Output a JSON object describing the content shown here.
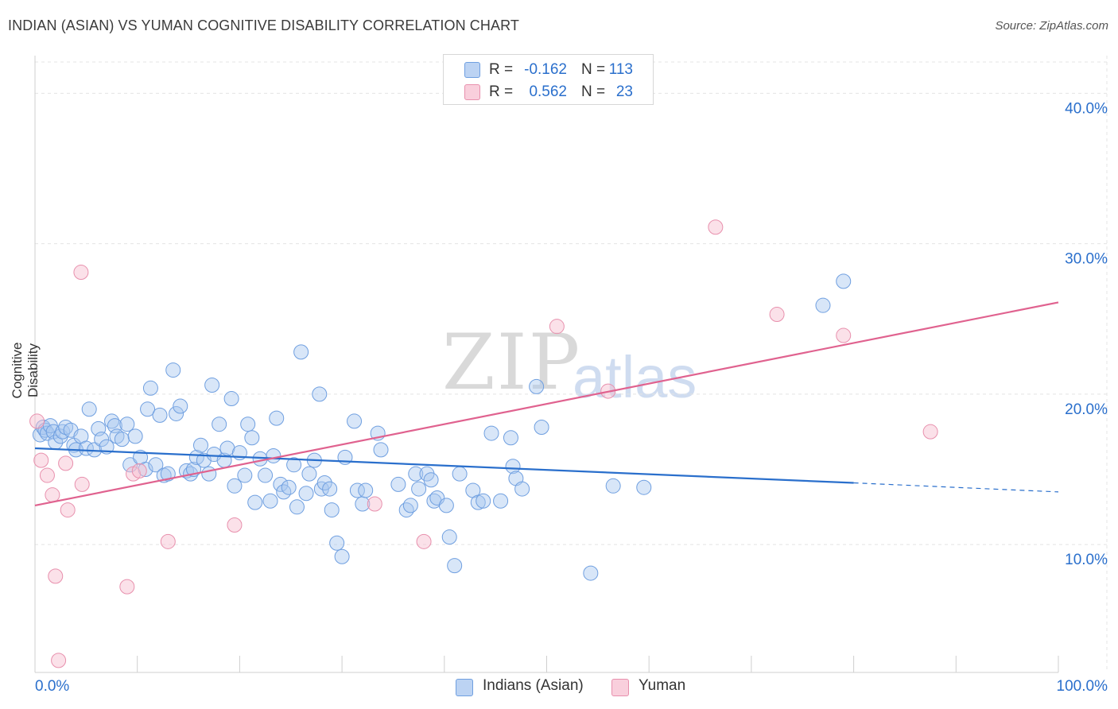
{
  "title": "INDIAN (ASIAN) VS YUMAN COGNITIVE DISABILITY CORRELATION CHART",
  "source": "Source: ZipAtlas.com",
  "watermark": {
    "zip": "ZIP",
    "atlas": "atlas"
  },
  "colors": {
    "blue": "#2a6fcc",
    "blue_fill": "#a9c7ef",
    "pink": "#e0628f",
    "pink_fill": "#f6bccf",
    "tick_label": "#2a6fcc",
    "grid": "#e4e4e4"
  },
  "legend": {
    "rows": [
      {
        "r_label": "R =",
        "r_value": "-0.162",
        "n_label": "N =",
        "n_value": "113"
      },
      {
        "r_label": "R =",
        "r_value": "0.562",
        "n_label": "N =",
        "n_value": "23"
      }
    ]
  },
  "chart_data": {
    "type": "scatter",
    "title": "INDIAN (ASIAN) VS YUMAN COGNITIVE DISABILITY CORRELATION CHART",
    "ylabel": "Cognitive Disability",
    "xlabel": "",
    "xlim": [
      0,
      100
    ],
    "ylim": [
      1.5,
      42.5
    ],
    "x_tick_labels": [
      "0.0%",
      "100.0%"
    ],
    "y_ticks": [
      10,
      20,
      30,
      40
    ],
    "y_tick_labels": [
      "10.0%",
      "20.0%",
      "30.0%",
      "40.0%"
    ],
    "grid": true,
    "legend_position": "top-center and bottom",
    "series": [
      {
        "name": "Indians (Asian)",
        "color": "#2a6fcc",
        "r": -0.162,
        "n": 113,
        "trend": {
          "x": [
            0,
            80,
            100
          ],
          "y": [
            16.4,
            14.1,
            13.5
          ],
          "dashed_from": 80
        },
        "points": [
          [
            0.5,
            17.3
          ],
          [
            0.8,
            17.8
          ],
          [
            1.0,
            17.6
          ],
          [
            1.2,
            17.4
          ],
          [
            1.5,
            17.9
          ],
          [
            1.8,
            17.5
          ],
          [
            2.0,
            16.8
          ],
          [
            2.5,
            17.2
          ],
          [
            2.7,
            17.5
          ],
          [
            3.0,
            17.8
          ],
          [
            3.5,
            17.6
          ],
          [
            3.8,
            16.6
          ],
          [
            4.0,
            16.3
          ],
          [
            4.5,
            17.2
          ],
          [
            5.0,
            16.4
          ],
          [
            5.3,
            19.0
          ],
          [
            5.8,
            16.3
          ],
          [
            6.2,
            17.7
          ],
          [
            6.5,
            17.0
          ],
          [
            7.0,
            16.5
          ],
          [
            7.5,
            18.2
          ],
          [
            7.8,
            17.9
          ],
          [
            8.0,
            17.2
          ],
          [
            8.5,
            17.0
          ],
          [
            9.0,
            18.0
          ],
          [
            9.3,
            15.3
          ],
          [
            9.8,
            17.2
          ],
          [
            10.3,
            15.8
          ],
          [
            10.8,
            15.0
          ],
          [
            11.0,
            19.0
          ],
          [
            11.3,
            20.4
          ],
          [
            11.8,
            15.3
          ],
          [
            12.2,
            18.6
          ],
          [
            12.6,
            14.6
          ],
          [
            13.0,
            14.7
          ],
          [
            13.5,
            21.6
          ],
          [
            13.8,
            18.7
          ],
          [
            14.2,
            19.2
          ],
          [
            14.8,
            14.9
          ],
          [
            15.2,
            14.7
          ],
          [
            15.5,
            15.0
          ],
          [
            15.8,
            15.8
          ],
          [
            16.2,
            16.6
          ],
          [
            16.5,
            15.6
          ],
          [
            17.0,
            14.7
          ],
          [
            17.3,
            20.6
          ],
          [
            17.5,
            16.0
          ],
          [
            18.0,
            18.0
          ],
          [
            18.5,
            15.6
          ],
          [
            18.8,
            16.4
          ],
          [
            19.2,
            19.7
          ],
          [
            19.5,
            13.9
          ],
          [
            20.0,
            16.1
          ],
          [
            20.5,
            14.6
          ],
          [
            20.8,
            18.0
          ],
          [
            21.2,
            17.1
          ],
          [
            21.5,
            12.8
          ],
          [
            22.0,
            15.7
          ],
          [
            22.5,
            14.6
          ],
          [
            23.0,
            12.9
          ],
          [
            23.3,
            15.9
          ],
          [
            23.6,
            18.4
          ],
          [
            24.0,
            14.0
          ],
          [
            24.3,
            13.5
          ],
          [
            24.8,
            13.8
          ],
          [
            25.3,
            15.3
          ],
          [
            25.6,
            12.5
          ],
          [
            26.0,
            22.8
          ],
          [
            26.5,
            13.4
          ],
          [
            26.8,
            14.7
          ],
          [
            27.3,
            15.6
          ],
          [
            27.8,
            20.0
          ],
          [
            28.0,
            13.7
          ],
          [
            28.3,
            14.1
          ],
          [
            28.8,
            13.7
          ],
          [
            29.0,
            12.3
          ],
          [
            29.5,
            10.1
          ],
          [
            30.0,
            9.2
          ],
          [
            30.3,
            15.8
          ],
          [
            31.2,
            18.2
          ],
          [
            31.5,
            13.6
          ],
          [
            32.0,
            12.7
          ],
          [
            32.3,
            13.6
          ],
          [
            33.5,
            17.4
          ],
          [
            33.8,
            16.3
          ],
          [
            35.5,
            14.0
          ],
          [
            36.3,
            12.3
          ],
          [
            36.7,
            12.6
          ],
          [
            37.2,
            14.7
          ],
          [
            37.5,
            13.7
          ],
          [
            38.3,
            14.7
          ],
          [
            38.7,
            14.3
          ],
          [
            39.0,
            12.9
          ],
          [
            39.3,
            13.1
          ],
          [
            40.2,
            12.6
          ],
          [
            40.5,
            10.5
          ],
          [
            41.0,
            8.6
          ],
          [
            41.5,
            14.7
          ],
          [
            42.8,
            13.6
          ],
          [
            43.3,
            12.8
          ],
          [
            43.8,
            12.9
          ],
          [
            44.6,
            17.4
          ],
          [
            45.5,
            12.9
          ],
          [
            46.5,
            17.1
          ],
          [
            46.7,
            15.2
          ],
          [
            47.0,
            14.4
          ],
          [
            47.6,
            13.7
          ],
          [
            49.0,
            20.5
          ],
          [
            49.5,
            17.8
          ],
          [
            54.3,
            8.1
          ],
          [
            56.5,
            13.9
          ],
          [
            59.5,
            13.8
          ],
          [
            77.0,
            25.9
          ],
          [
            79.0,
            27.5
          ]
        ]
      },
      {
        "name": "Yuman",
        "color": "#e0628f",
        "r": 0.562,
        "n": 23,
        "trend": {
          "x": [
            0,
            100
          ],
          "y": [
            12.6,
            26.1
          ]
        },
        "points": [
          [
            0.2,
            18.2
          ],
          [
            0.6,
            15.6
          ],
          [
            1.2,
            14.6
          ],
          [
            1.7,
            13.3
          ],
          [
            2.0,
            7.9
          ],
          [
            2.3,
            2.3
          ],
          [
            3.0,
            15.4
          ],
          [
            3.2,
            12.3
          ],
          [
            4.5,
            28.1
          ],
          [
            4.6,
            14.0
          ],
          [
            9.0,
            7.2
          ],
          [
            9.6,
            14.7
          ],
          [
            10.2,
            14.9
          ],
          [
            13.0,
            10.2
          ],
          [
            19.5,
            11.3
          ],
          [
            33.2,
            12.7
          ],
          [
            38.0,
            10.2
          ],
          [
            51.0,
            24.5
          ],
          [
            56.0,
            20.2
          ],
          [
            66.5,
            31.1
          ],
          [
            72.5,
            25.3
          ],
          [
            79.0,
            23.9
          ],
          [
            87.5,
            17.5
          ]
        ]
      }
    ]
  },
  "bottom_legend": [
    {
      "label": "Indians (Asian)"
    },
    {
      "label": "Yuman"
    }
  ]
}
